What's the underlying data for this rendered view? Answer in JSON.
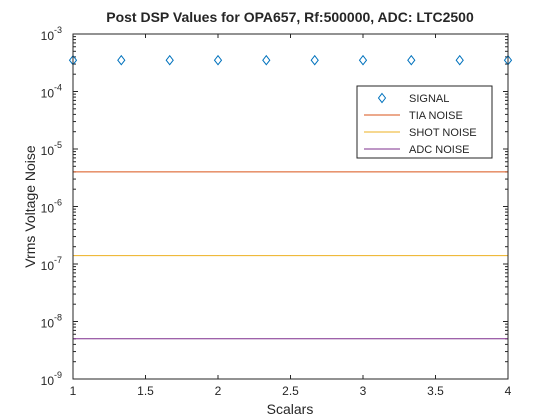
{
  "chart_data": {
    "type": "line",
    "title": "Post DSP Values for OPA657, Rf:500000, ADC: LTC2500",
    "xlabel": "Scalars",
    "ylabel": "Vrms Voltage Noise",
    "xlim": [
      1,
      4
    ],
    "ylim_log10": [
      -9,
      -3
    ],
    "yscale": "log",
    "x_ticks": [
      1,
      1.5,
      2,
      2.5,
      3,
      3.5,
      4
    ],
    "x_tick_labels": [
      "1",
      "1.5",
      "2",
      "2.5",
      "3",
      "3.5",
      "4"
    ],
    "y_ticks_exp": [
      -3,
      -4,
      -5,
      -6,
      -7,
      -8,
      -9
    ],
    "y_tick_base": "10",
    "y_tick_exps": [
      "-3",
      "-4",
      "-5",
      "-6",
      "-7",
      "-8",
      "-9"
    ],
    "series": [
      {
        "name": "SIGNAL",
        "kind": "marker",
        "marker": "diamond",
        "color": "#0072bd",
        "x": [
          1,
          1.333,
          1.667,
          2,
          2.333,
          2.667,
          3,
          3.333,
          3.667,
          4
        ],
        "y": [
          0.00035,
          0.00035,
          0.00035,
          0.00035,
          0.00035,
          0.00035,
          0.00035,
          0.00035,
          0.00035,
          0.00035
        ]
      },
      {
        "name": "TIA NOISE",
        "kind": "line",
        "color": "#d95319",
        "x": [
          1,
          4
        ],
        "y": [
          4e-06,
          4e-06
        ]
      },
      {
        "name": "SHOT NOISE",
        "kind": "line",
        "color": "#edb120",
        "x": [
          1,
          4
        ],
        "y": [
          1.4e-07,
          1.4e-07
        ]
      },
      {
        "name": "ADC NOISE",
        "kind": "line",
        "color": "#7e2f8e",
        "x": [
          1,
          4
        ],
        "y": [
          5e-09,
          5e-09
        ]
      }
    ],
    "legend": {
      "position": "top-right",
      "entries": [
        "SIGNAL",
        "TIA NOISE",
        "SHOT NOISE",
        "ADC NOISE"
      ]
    }
  }
}
